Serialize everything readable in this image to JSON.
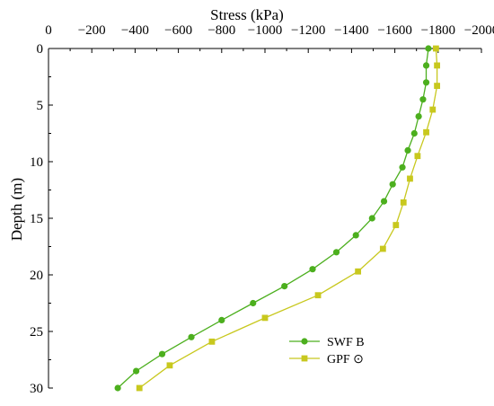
{
  "chart_data": {
    "type": "line",
    "title": "",
    "xlabel": "Stress (kPa)",
    "ylabel": "Depth (m)",
    "xlim": [
      0,
      -2000
    ],
    "ylim": [
      0,
      30
    ],
    "x_axis_position": "top",
    "y_axis_inverted": true,
    "x_ticks": [
      0,
      -200,
      -400,
      -600,
      -800,
      -1000,
      -1200,
      -1400,
      -1600,
      -1800,
      -2000
    ],
    "x_tick_labels": [
      "0",
      "−200",
      "−400",
      "−600",
      "−800",
      "−1000",
      "−1200",
      "−1400",
      "−1600",
      "−1800",
      "−2000"
    ],
    "y_ticks": [
      0,
      5,
      10,
      15,
      20,
      25,
      30
    ],
    "y_tick_labels": [
      "0",
      "5",
      "10",
      "15",
      "20",
      "25",
      "30"
    ],
    "grid": false,
    "legend_position": "bottom-right",
    "series": [
      {
        "name": "SWF B",
        "color": "#4caf1e",
        "marker": "circle",
        "points": [
          [
            -1755,
            0
          ],
          [
            -1745,
            1.5
          ],
          [
            -1745,
            3
          ],
          [
            -1730,
            4.5
          ],
          [
            -1710,
            6
          ],
          [
            -1690,
            7.5
          ],
          [
            -1660,
            9
          ],
          [
            -1635,
            10.5
          ],
          [
            -1590,
            12
          ],
          [
            -1550,
            13.5
          ],
          [
            -1495,
            15
          ],
          [
            -1420,
            16.5
          ],
          [
            -1330,
            18
          ],
          [
            -1220,
            19.5
          ],
          [
            -1090,
            21
          ],
          [
            -945,
            22.5
          ],
          [
            -800,
            24
          ],
          [
            -660,
            25.5
          ],
          [
            -525,
            27
          ],
          [
            -405,
            28.5
          ],
          [
            -320,
            30
          ]
        ]
      },
      {
        "name": "GPF ⊙",
        "color": "#c8c81e",
        "marker": "square",
        "points": [
          [
            -1790,
            0
          ],
          [
            -1795,
            1.5
          ],
          [
            -1795,
            3.3
          ],
          [
            -1775,
            5.4
          ],
          [
            -1745,
            7.4
          ],
          [
            -1705,
            9.5
          ],
          [
            -1670,
            11.5
          ],
          [
            -1640,
            13.6
          ],
          [
            -1605,
            15.6
          ],
          [
            -1545,
            17.7
          ],
          [
            -1430,
            19.7
          ],
          [
            -1245,
            21.8
          ],
          [
            -1000,
            23.8
          ],
          [
            -755,
            25.9
          ],
          [
            -560,
            28
          ],
          [
            -420,
            30
          ]
        ]
      }
    ]
  }
}
